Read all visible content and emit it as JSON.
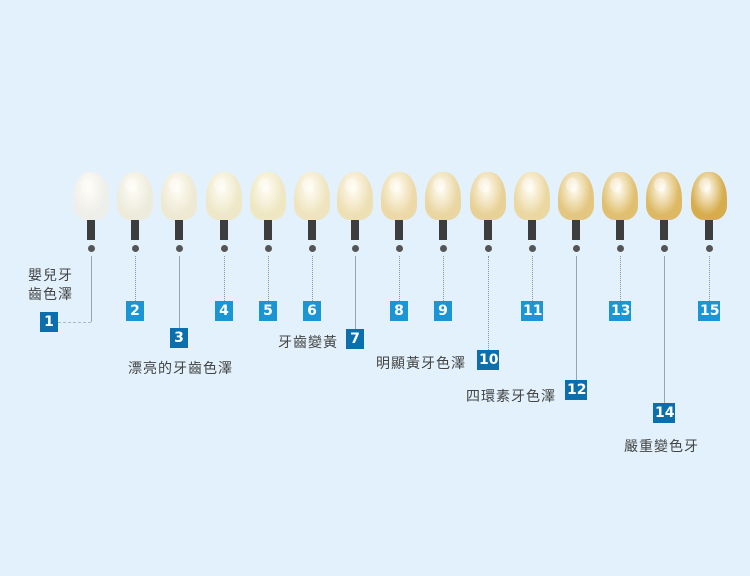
{
  "shades": [
    {
      "number": "1",
      "color": "#eeeeea",
      "label": "嬰兒牙齒色澤",
      "major": true
    },
    {
      "number": "2",
      "color": "#ecebdc",
      "major": false
    },
    {
      "number": "3",
      "color": "#eee9d3",
      "label": "漂亮的牙齒色澤",
      "major": true
    },
    {
      "number": "4",
      "color": "#eee8c8",
      "major": false
    },
    {
      "number": "5",
      "color": "#eee7c2",
      "major": false
    },
    {
      "number": "6",
      "color": "#efe4be",
      "major": false
    },
    {
      "number": "7",
      "color": "#eee0b5",
      "label": "牙齒變黃",
      "major": true
    },
    {
      "number": "8",
      "color": "#edd9a8",
      "major": false
    },
    {
      "number": "9",
      "color": "#ead6a2",
      "major": false
    },
    {
      "number": "10",
      "color": "#e8d196",
      "label": "明顯黃牙色澤",
      "major": true
    },
    {
      "number": "11",
      "color": "#ebd7a0",
      "major": false
    },
    {
      "number": "12",
      "color": "#e3c67f",
      "label": "四環素牙色澤",
      "major": true
    },
    {
      "number": "13",
      "color": "#e0c070",
      "major": false
    },
    {
      "number": "14",
      "color": "#ddb965",
      "label": "嚴重變色牙",
      "major": true
    },
    {
      "number": "15",
      "color": "#d6ac4c",
      "major": false
    }
  ],
  "labels": {
    "l1a": "嬰兒牙",
    "l1b": "齒色澤",
    "l3": "漂亮的牙齒色澤",
    "l7": "牙齒變黃",
    "l10": "明顯黃牙色澤",
    "l12": "四環素牙色澤",
    "l14": "嚴重變色牙"
  }
}
